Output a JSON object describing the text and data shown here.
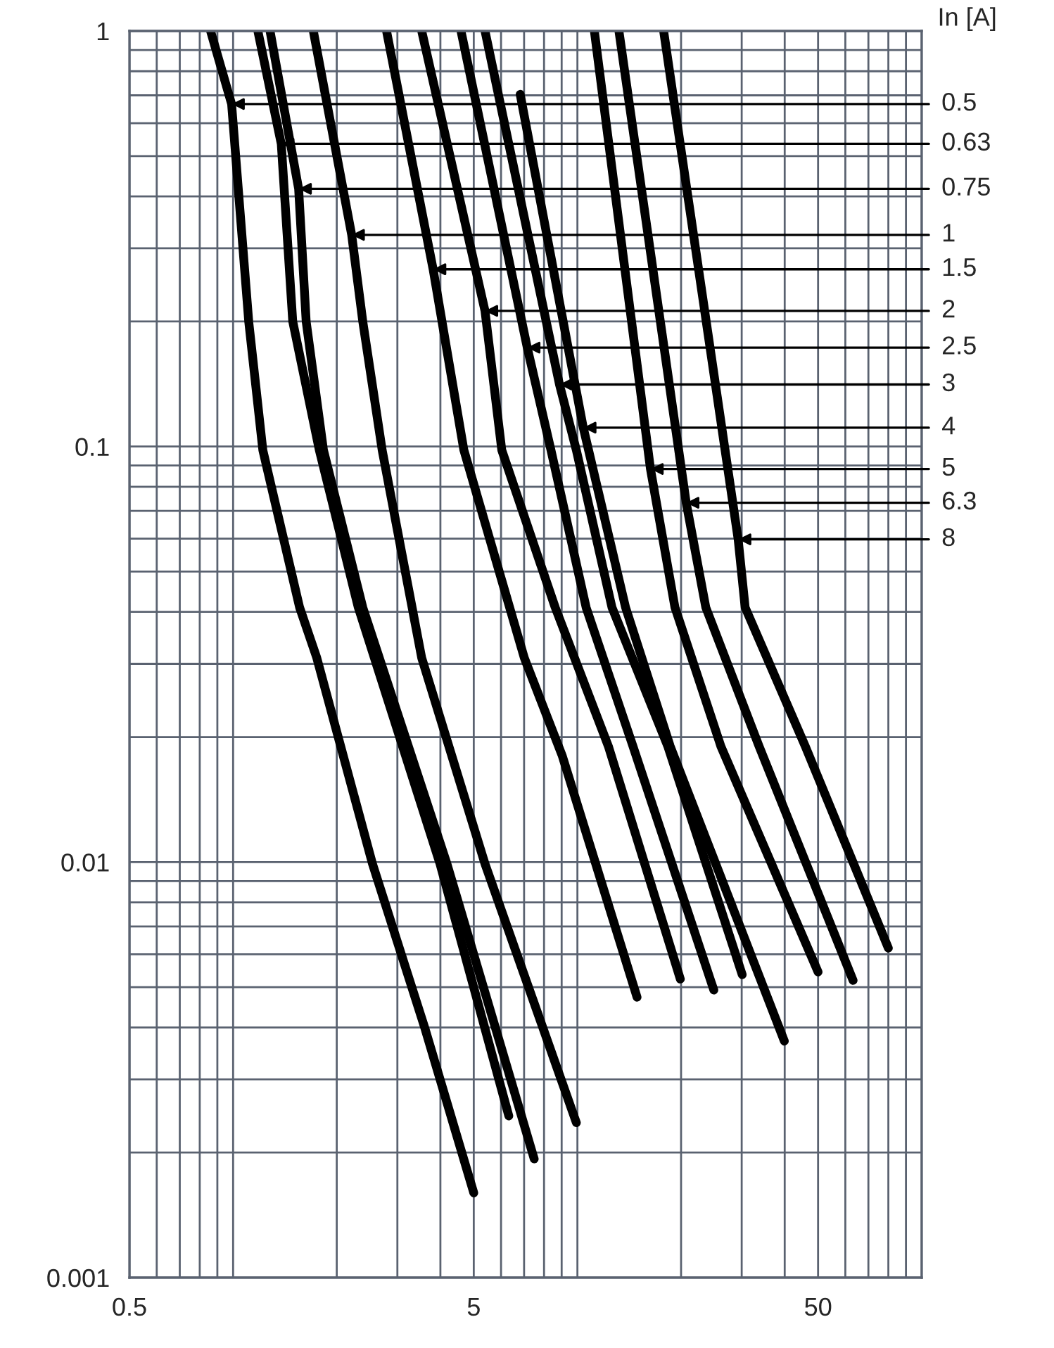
{
  "chart_data": {
    "type": "line",
    "xlim": [
      0.5,
      100
    ],
    "ylim": [
      0.001,
      1
    ],
    "log": "xy",
    "grid": true,
    "legend": false,
    "marker": "none",
    "line_style": "solid",
    "xticks": [
      0.5,
      5,
      50
    ],
    "yticks": [
      0.001,
      0.01,
      0.1,
      1
    ],
    "series": [
      {
        "color": "#000000",
        "x": [
          0.86,
          0.99,
          1.11,
          1.22,
          1.56,
          1.75,
          2.54,
          3.6,
          5.0
        ],
        "values": [
          1,
          0.667,
          0.2,
          0.098,
          0.041,
          0.031,
          0.0099,
          0.004,
          0.0016
        ]
      },
      {
        "color": "#000000",
        "x": [
          1.18,
          1.38,
          1.49,
          1.78,
          2.31,
          3.99,
          6.32
        ],
        "values": [
          1,
          0.535,
          0.2,
          0.098,
          0.041,
          0.0099,
          0.00245
        ]
      },
      {
        "color": "#000000",
        "x": [
          1.28,
          1.55,
          1.63,
          1.83,
          2.38,
          4.18,
          7.49
        ],
        "values": [
          1,
          0.417,
          0.2,
          0.098,
          0.041,
          0.0099,
          0.00193
        ]
      },
      {
        "color": "#000000",
        "x": [
          1.71,
          2.21,
          2.38,
          2.71,
          3.53,
          5.39,
          9.93
        ],
        "values": [
          1,
          0.323,
          0.2,
          0.098,
          0.031,
          0.0099,
          0.00236
        ]
      },
      {
        "color": "#000000",
        "x": [
          2.79,
          3.81,
          4.68,
          7.01,
          9.04,
          14.9
        ],
        "values": [
          1,
          0.267,
          0.098,
          0.031,
          0.018,
          0.00473
        ]
      },
      {
        "color": "#000000",
        "x": [
          3.53,
          5.39,
          6.03,
          8.62,
          12.3,
          19.9
        ],
        "values": [
          1,
          0.212,
          0.098,
          0.041,
          0.019,
          0.00523
        ]
      },
      {
        "color": "#000000",
        "x": [
          4.59,
          7.15,
          8.38,
          10.6,
          14.5,
          24.9
        ],
        "values": [
          1,
          0.173,
          0.098,
          0.041,
          0.019,
          0.00492
        ]
      },
      {
        "color": "#000000",
        "x": [
          5.39,
          8.87,
          9.93,
          12.6,
          18.3,
          30.1
        ],
        "values": [
          1,
          0.141,
          0.098,
          0.041,
          0.019,
          0.00536
        ]
      },
      {
        "color": "#000000",
        "x": [
          6.82,
          10.4,
          13.8,
          18.6,
          39.9
        ],
        "values": [
          0.704,
          0.111,
          0.041,
          0.019,
          0.00371
        ]
      },
      {
        "color": "#000000",
        "x": [
          11.2,
          16.3,
          19.2,
          26.1,
          50.0
        ],
        "values": [
          1,
          0.0883,
          0.041,
          0.019,
          0.00544
        ]
      },
      {
        "color": "#000000",
        "x": [
          13.2,
          20.7,
          23.6,
          33.7,
          63.2
        ],
        "values": [
          1,
          0.0732,
          0.041,
          0.019,
          0.00519
        ]
      },
      {
        "color": "#000000",
        "x": [
          17.8,
          29.3,
          30.7,
          45.9,
          80.0
        ],
        "values": [
          1,
          0.0598,
          0.041,
          0.019,
          0.00621
        ]
      }
    ],
    "annotations": [
      "In [A]",
      {
        "text": "0.5",
        "x": 0.99,
        "y": 0.667
      },
      {
        "text": "0.63",
        "x": 1.38,
        "y": 0.535
      },
      {
        "text": "0.75",
        "x": 1.55,
        "y": 0.417
      },
      {
        "text": "1",
        "x": 2.21,
        "y": 0.323
      },
      {
        "text": "1.5",
        "x": 3.81,
        "y": 0.267
      },
      {
        "text": "2",
        "x": 5.39,
        "y": 0.212
      },
      {
        "text": "2.5",
        "x": 7.15,
        "y": 0.173
      },
      {
        "text": "3",
        "x": 8.87,
        "y": 0.141
      },
      {
        "text": "4",
        "x": 10.4,
        "y": 0.111
      },
      {
        "text": "5",
        "x": 16.3,
        "y": 0.0883
      },
      {
        "text": "6.3",
        "x": 20.7,
        "y": 0.0732
      },
      {
        "text": "8",
        "x": 29.3,
        "y": 0.0598
      }
    ]
  }
}
